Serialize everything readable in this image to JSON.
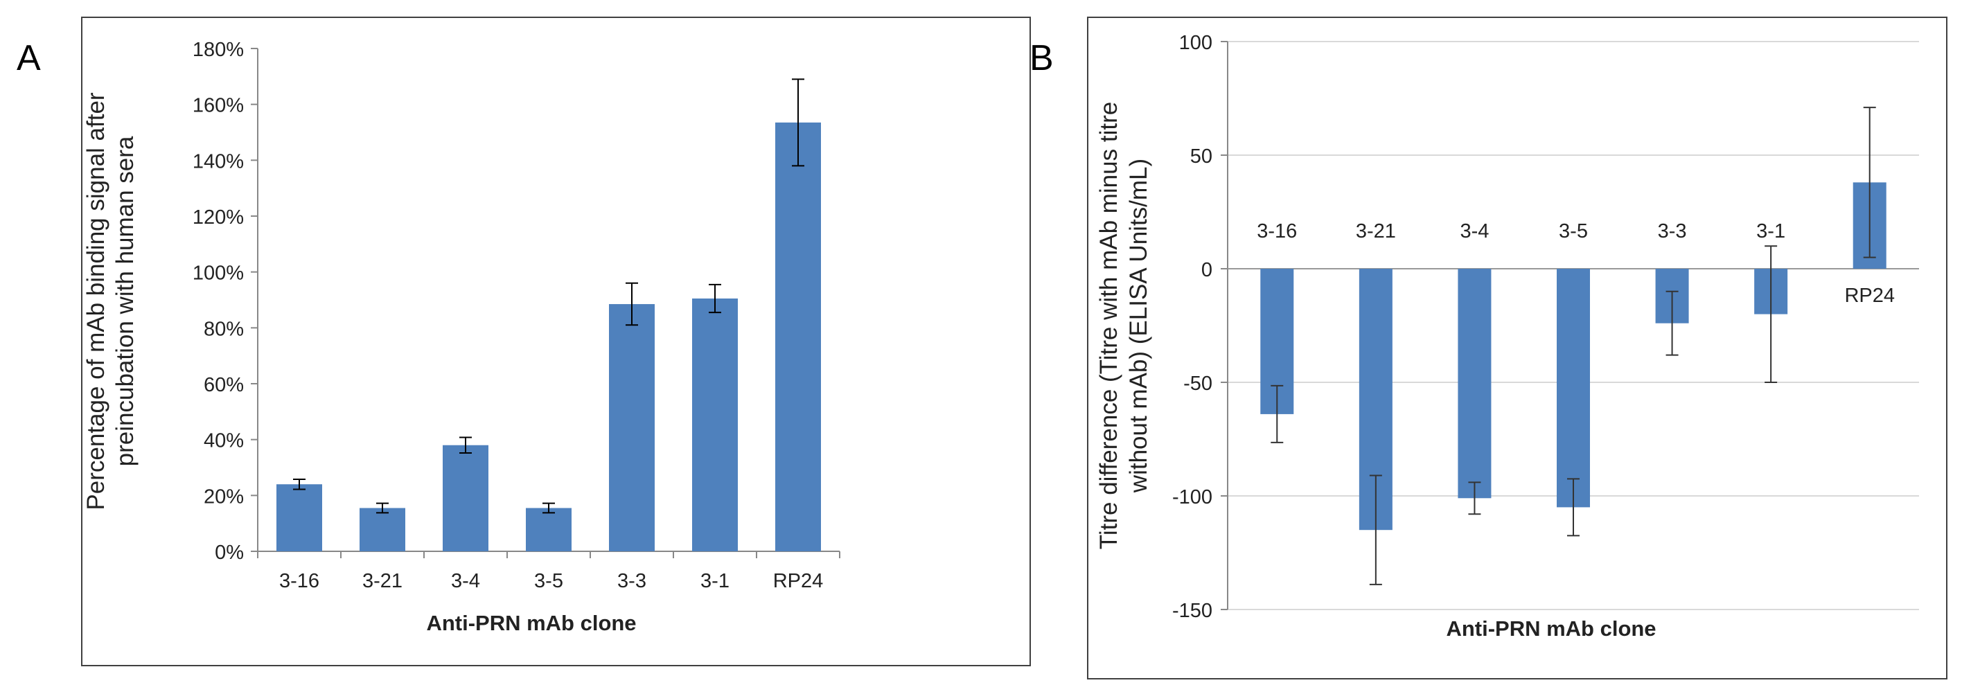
{
  "chart_data": [
    {
      "panel_label": "A",
      "type": "bar",
      "categories": [
        "3-16",
        "3-21",
        "3-4",
        "3-5",
        "3-3",
        "3-1",
        "RP24"
      ],
      "values": [
        24,
        15.5,
        38,
        15.5,
        88.5,
        90.5,
        153.5
      ],
      "errors": [
        1.8,
        1.7,
        2.8,
        1.7,
        7.5,
        5,
        15.5
      ],
      "title": "",
      "xlabel": "Anti-PRN mAb clone",
      "ylabel_lines": [
        "Percentage of mAb binding signal after",
        "preincubation with human sera"
      ],
      "ylim": [
        0,
        180
      ],
      "yticks": [
        0,
        20,
        40,
        60,
        80,
        100,
        120,
        140,
        160,
        180
      ],
      "tick_suffix": "%",
      "grid": false,
      "bar_color": "#4f81bd"
    },
    {
      "panel_label": "B",
      "type": "bar",
      "categories": [
        "3-16",
        "3-21",
        "3-4",
        "3-5",
        "3-3",
        "3-1",
        "RP24"
      ],
      "values": [
        -64,
        -115,
        -101,
        -105,
        -24,
        -20,
        38
      ],
      "errors": [
        12.5,
        24,
        7,
        12.5,
        14,
        30,
        33
      ],
      "title": "",
      "xlabel": "Anti-PRN mAb clone",
      "ylabel_lines": [
        "Titre difference (Titre with mAb minus titre",
        "without mAb) (ELISA Units/mL)"
      ],
      "ylim": [
        -150,
        100
      ],
      "yticks": [
        -150,
        -100,
        -50,
        0,
        50,
        100
      ],
      "tick_suffix": "",
      "grid": true,
      "bar_color": "#4f81bd"
    }
  ]
}
